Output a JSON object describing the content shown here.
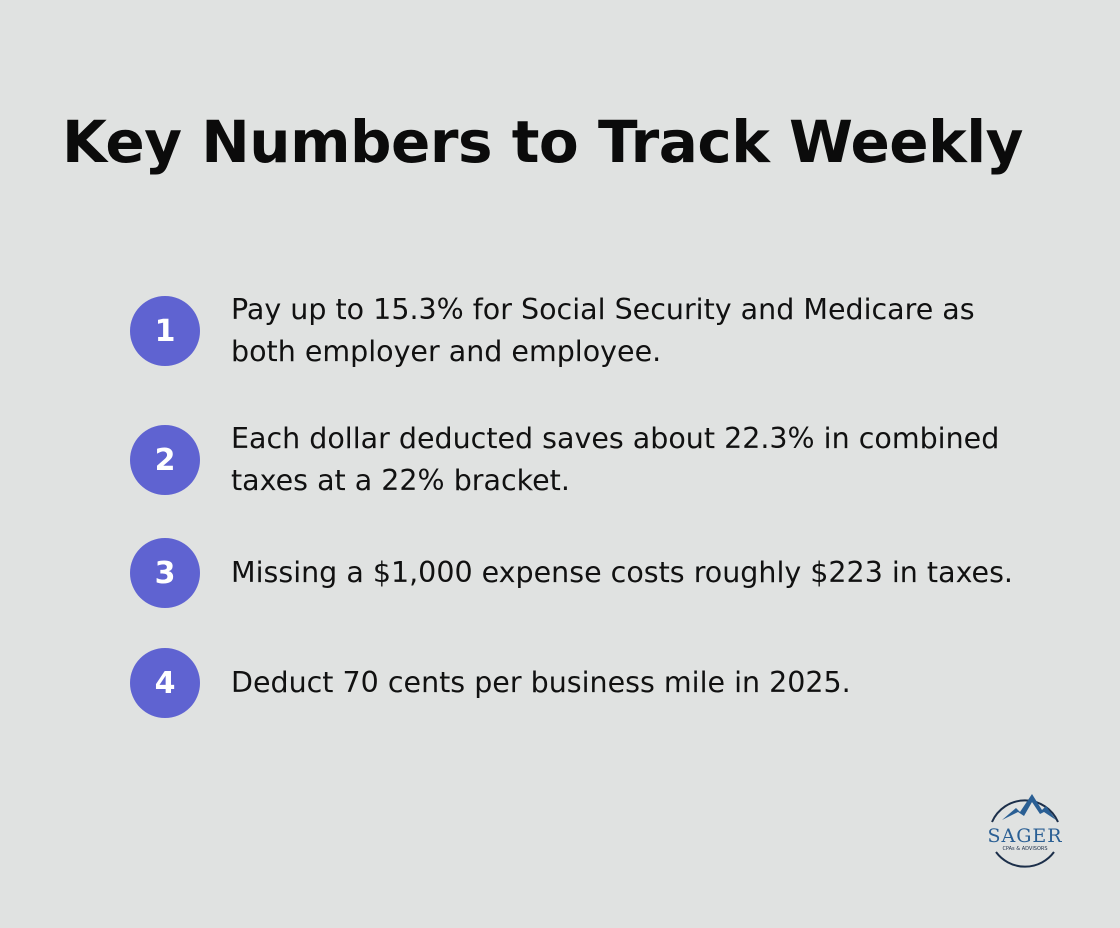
{
  "title": "Key Numbers to Track Weekly",
  "items": [
    {
      "number": "1",
      "text": "Pay up to 15.3% for Social Security and Medicare as both employer and employee."
    },
    {
      "number": "2",
      "text": "Each dollar deducted saves about 22.3% in combined taxes at a 22% bracket."
    },
    {
      "number": "3",
      "text": "Missing a $1,000 expense costs roughly $223 in taxes."
    },
    {
      "number": "4",
      "text": "Deduct 70 cents per business mile in 2025."
    }
  ],
  "logo": {
    "name": "SAGER",
    "tagline": "CPAs & ADVISORS"
  },
  "colors": {
    "background": "#e0e2e1",
    "accent": "#5f63d1",
    "logo_blue": "#2a5f94",
    "logo_navy": "#1c2f4a"
  }
}
